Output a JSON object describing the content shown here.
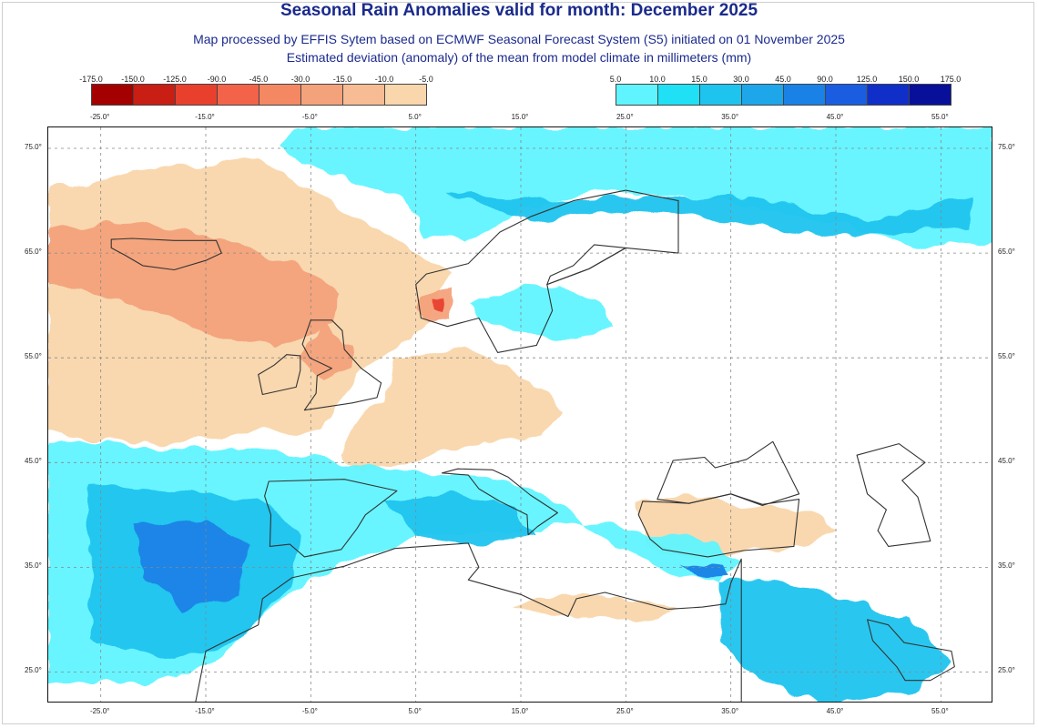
{
  "title": "Seasonal Rain Anomalies valid for month: December 2025",
  "subtitle_1": "Map processed by EFFIS Sytem based on ECMWF Seasonal Forecast System (S5) initiated on 01 November 2025",
  "subtitle_2": "Estimated deviation (anomaly) of the mean from model climate in millimeters (mm)",
  "negative_scale": {
    "labels": [
      "-175.0",
      "-150.0",
      "-125.0",
      "-90.0",
      "-45.0",
      "-30.0",
      "-15.0",
      "-10.0",
      "-5.0"
    ],
    "colors": [
      "#a50000",
      "#c81e14",
      "#e8402c",
      "#f2634a",
      "#f48863",
      "#f4a27c",
      "#f7bc94",
      "#f9d6ab"
    ]
  },
  "positive_scale": {
    "labels": [
      "5.0",
      "10.0",
      "15.0",
      "30.0",
      "45.0",
      "90.0",
      "125.0",
      "150.0",
      "175.0"
    ],
    "colors": [
      "#5ff4ff",
      "#1fe0f5",
      "#1fc4ee",
      "#1ea6ea",
      "#1a82e6",
      "#1a5de0",
      "#102fc8",
      "#08109a"
    ]
  },
  "top_lon_labels": [
    "-25.0°",
    "-15.0°",
    "-5.0°",
    "5.0°",
    "15.0°",
    "25.0°",
    "35.0°",
    "45.0°",
    "55.0°"
  ],
  "bottom_lon_labels": [
    "-25.0°",
    "-15.0°",
    "-5.0°",
    "5.0°",
    "15.0°",
    "25.0°",
    "35.0°",
    "45.0°",
    "55.0°"
  ],
  "lat_labels": [
    "75.0°",
    "65.0°",
    "55.0°",
    "45.0°",
    "35.0°",
    "25.0°"
  ],
  "lon_values": [
    -25,
    -15,
    -5,
    5,
    15,
    25,
    35,
    45,
    55
  ],
  "lat_values": [
    75,
    65,
    55,
    45,
    35,
    25
  ],
  "map": {
    "region": "Europe, North Africa, Middle East",
    "projection": "lat-lon",
    "lon_range": [
      -30,
      60
    ],
    "lat_range": [
      22,
      77
    ],
    "colors": {
      "dry_pale": "#f9d6ab",
      "dry_mid": "#f4a27c",
      "dry_strong": "#e8402c",
      "wet_light": "#5ff4ff",
      "wet_mid": "#1fc4ee",
      "wet_strong": "#1a82e6",
      "wet_deep": "#1a5de0",
      "border": "#333333",
      "grid": "#888888"
    }
  }
}
